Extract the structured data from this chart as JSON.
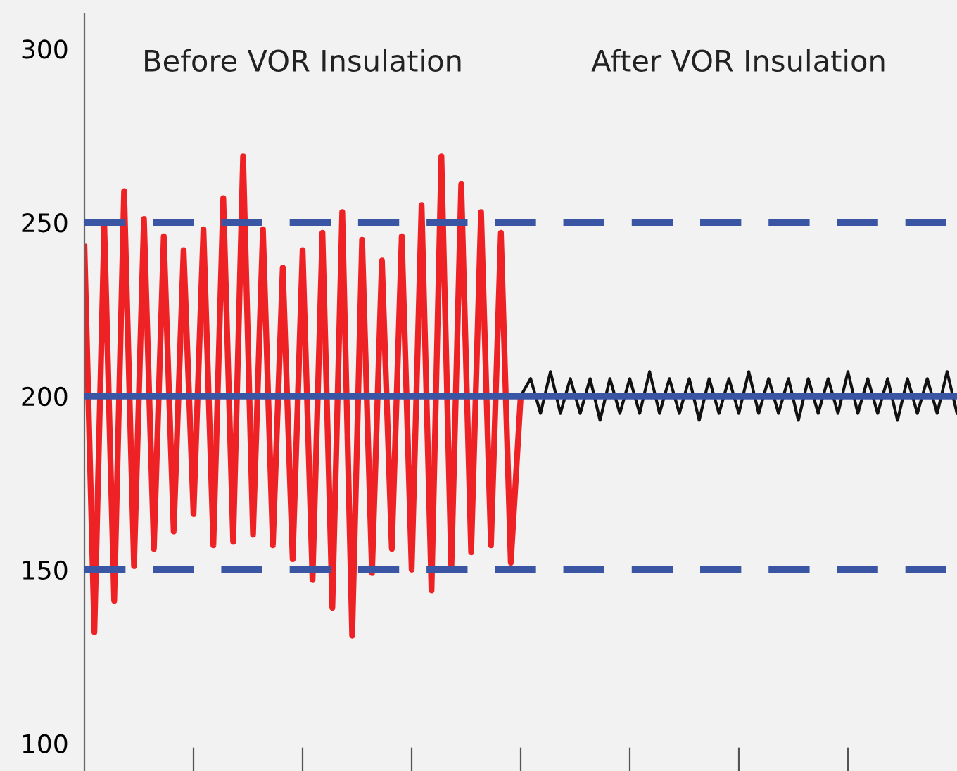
{
  "chart_data": {
    "type": "line",
    "annotations": [
      "Before VOR Insulation",
      "After VOR Insulation"
    ],
    "categories": [
      null,
      null,
      null,
      null,
      null,
      null,
      null,
      null,
      null,
      null,
      null,
      null,
      null,
      null,
      null,
      null,
      null,
      null,
      null,
      null,
      null,
      null,
      null,
      null,
      null,
      null,
      null,
      null,
      null,
      null,
      null,
      null,
      null,
      null,
      null,
      null,
      null,
      null,
      null,
      null,
      null,
      null,
      null,
      null,
      null,
      null,
      null,
      null,
      null,
      null,
      null,
      null,
      null,
      null,
      null,
      null,
      null,
      null,
      null,
      null,
      null,
      null,
      null,
      null,
      null,
      null,
      null,
      null,
      null,
      null,
      null,
      null,
      null,
      null,
      null,
      null,
      null,
      null,
      null,
      null,
      null,
      null,
      null,
      null,
      null,
      null,
      null,
      null,
      null
    ],
    "ylim": [
      92,
      310
    ],
    "yticks": [
      100,
      150,
      200,
      250,
      300
    ],
    "tick_labels": "y",
    "grid": false,
    "marker": "none",
    "line_style": "solid",
    "ref_lines": [
      {
        "axis": "y",
        "value": 250,
        "color": "#3a55a4",
        "line_style": "dashed"
      },
      {
        "axis": "y",
        "value": 150,
        "color": "#3a55a4",
        "line_style": "dashed"
      },
      {
        "axis": "y",
        "value": 200,
        "color": "#3a55a4",
        "line_style": "solid"
      }
    ],
    "series": [
      {
        "color": "#ee2224",
        "values": [
          243,
          132,
          249,
          141,
          259,
          151,
          251,
          156,
          246,
          161,
          242,
          166,
          248,
          157,
          257,
          158,
          269,
          160,
          248,
          157,
          237,
          153,
          242,
          147,
          247,
          139,
          253,
          131,
          245,
          149,
          239,
          156,
          246,
          150,
          255,
          144,
          269,
          150,
          261,
          155,
          253,
          157,
          247,
          152,
          200,
          null,
          null,
          null,
          null,
          null,
          null,
          null,
          null,
          null,
          null,
          null,
          null,
          null,
          null,
          null,
          null,
          null,
          null,
          null,
          null,
          null,
          null,
          null,
          null,
          null,
          null,
          null,
          null,
          null,
          null,
          null,
          null,
          null,
          null,
          null,
          null,
          null,
          null,
          null,
          null,
          null,
          null,
          null,
          null
        ]
      },
      {
        "color": "#111111",
        "values": [
          null,
          null,
          null,
          null,
          null,
          null,
          null,
          null,
          null,
          null,
          null,
          null,
          null,
          null,
          null,
          null,
          null,
          null,
          null,
          null,
          null,
          null,
          null,
          null,
          null,
          null,
          null,
          null,
          null,
          null,
          null,
          null,
          null,
          null,
          null,
          null,
          null,
          null,
          null,
          null,
          null,
          null,
          null,
          null,
          200,
          205,
          195,
          207,
          195,
          205,
          195,
          205,
          193,
          205,
          195,
          205,
          195,
          207,
          195,
          205,
          195,
          205,
          193,
          205,
          195,
          205,
          195,
          207,
          195,
          205,
          195,
          205,
          193,
          205,
          195,
          205,
          195,
          207,
          195,
          205,
          195,
          205,
          193,
          205,
          195,
          205,
          195,
          207,
          195
        ]
      }
    ]
  }
}
